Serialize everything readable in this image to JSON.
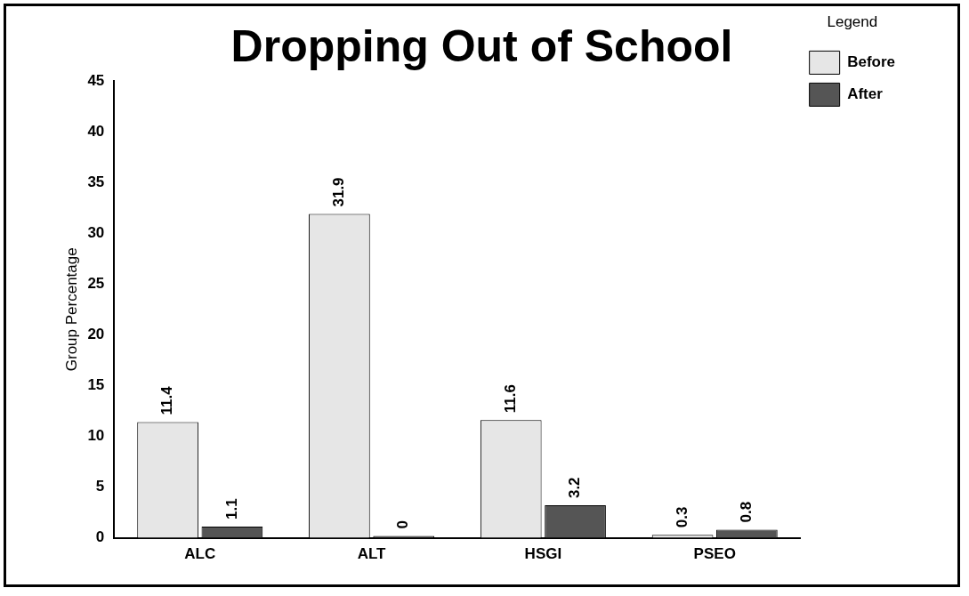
{
  "chart_data": {
    "type": "bar",
    "title": "Dropping Out of School",
    "ylabel": "Group Percentage",
    "legend_title": "Legend",
    "categories": [
      "ALC",
      "ALT",
      "HSGI",
      "PSEO"
    ],
    "series": [
      {
        "name": "Before",
        "color": "#e6e6e6",
        "values": [
          11.4,
          31.9,
          11.6,
          0.3
        ]
      },
      {
        "name": "After",
        "color": "#555555",
        "values": [
          1.1,
          0,
          3.2,
          0.8
        ]
      }
    ],
    "ylim": [
      0,
      45
    ],
    "yticks": [
      0,
      5,
      10,
      15,
      20,
      25,
      30,
      35,
      40,
      45
    ],
    "grid": false,
    "legend": "top right",
    "data_labels": true
  }
}
